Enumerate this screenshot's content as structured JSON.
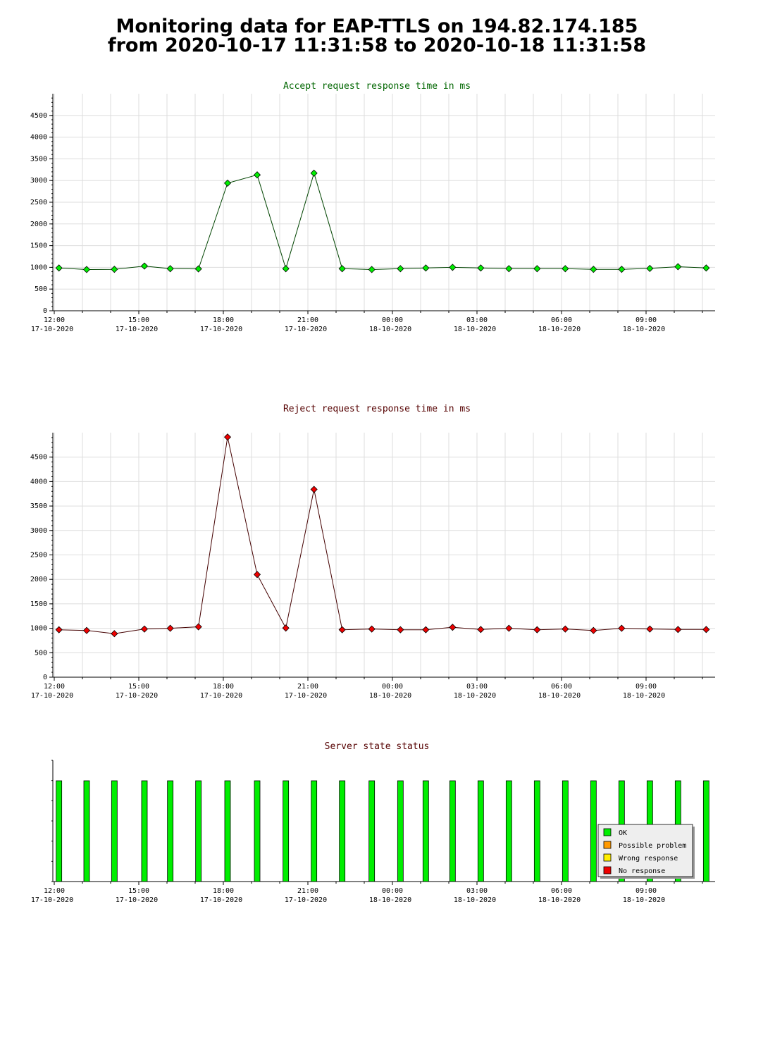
{
  "page": {
    "title_line1": "Monitoring data for EAP-TTLS on 194.82.174.185",
    "title_line2": "from 2020-10-17 11:31:58 to 2020-10-18 11:31:58"
  },
  "chart_data": [
    {
      "type": "line",
      "title": "Accept request response time in ms",
      "title_color": "#006600",
      "line_color": "#004400",
      "marker_color": "#00ee00",
      "ylim": [
        0,
        5000
      ],
      "yticks": [
        0,
        500,
        1000,
        1500,
        2000,
        2500,
        3000,
        3500,
        4000,
        4500
      ],
      "grid": true,
      "x_tick_labels": [
        {
          "time": "12:00",
          "date": "17-10-2020"
        },
        {
          "time": "15:00",
          "date": "17-10-2020"
        },
        {
          "time": "18:00",
          "date": "17-10-2020"
        },
        {
          "time": "21:00",
          "date": "17-10-2020"
        },
        {
          "time": "00:00",
          "date": "18-10-2020"
        },
        {
          "time": "03:00",
          "date": "18-10-2020"
        },
        {
          "time": "06:00",
          "date": "18-10-2020"
        },
        {
          "time": "09:00",
          "date": "18-10-2020"
        }
      ],
      "x": [
        "2020-10-17 12:10",
        "2020-10-17 13:09",
        "2020-10-17 14:08",
        "2020-10-17 15:12",
        "2020-10-17 16:07",
        "2020-10-17 17:07",
        "2020-10-17 18:09",
        "2020-10-17 19:12",
        "2020-10-17 20:13",
        "2020-10-17 21:13",
        "2020-10-17 22:13",
        "2020-10-17 23:16",
        "2020-10-18 00:17",
        "2020-10-18 01:11",
        "2020-10-18 02:08",
        "2020-10-18 03:08",
        "2020-10-18 04:08",
        "2020-10-18 05:08",
        "2020-10-18 06:08",
        "2020-10-18 07:08",
        "2020-10-18 08:08",
        "2020-10-18 09:08",
        "2020-10-18 10:08",
        "2020-10-18 11:08"
      ],
      "values": [
        985,
        950,
        955,
        1030,
        970,
        965,
        2940,
        3130,
        970,
        3170,
        970,
        950,
        970,
        985,
        1000,
        985,
        970,
        970,
        970,
        955,
        955,
        975,
        1015,
        985
      ]
    },
    {
      "type": "line",
      "title": "Reject request response time in ms",
      "title_color": "#550000",
      "line_color": "#440000",
      "marker_color": "#ee0000",
      "ylim": [
        0,
        5000
      ],
      "yticks": [
        0,
        500,
        1000,
        1500,
        2000,
        2500,
        3000,
        3500,
        4000,
        4500
      ],
      "grid": true,
      "x_tick_labels": [
        {
          "time": "12:00",
          "date": "17-10-2020"
        },
        {
          "time": "15:00",
          "date": "17-10-2020"
        },
        {
          "time": "18:00",
          "date": "17-10-2020"
        },
        {
          "time": "21:00",
          "date": "17-10-2020"
        },
        {
          "time": "00:00",
          "date": "18-10-2020"
        },
        {
          "time": "03:00",
          "date": "18-10-2020"
        },
        {
          "time": "06:00",
          "date": "18-10-2020"
        },
        {
          "time": "09:00",
          "date": "18-10-2020"
        }
      ],
      "x": [
        "2020-10-17 12:10",
        "2020-10-17 13:09",
        "2020-10-17 14:08",
        "2020-10-17 15:12",
        "2020-10-17 16:07",
        "2020-10-17 17:07",
        "2020-10-17 18:09",
        "2020-10-17 19:12",
        "2020-10-17 20:13",
        "2020-10-17 21:13",
        "2020-10-17 22:13",
        "2020-10-17 23:16",
        "2020-10-18 00:17",
        "2020-10-18 01:11",
        "2020-10-18 02:08",
        "2020-10-18 03:08",
        "2020-10-18 04:08",
        "2020-10-18 05:08",
        "2020-10-18 06:08",
        "2020-10-18 07:08",
        "2020-10-18 08:08",
        "2020-10-18 09:08",
        "2020-10-18 10:08",
        "2020-10-18 11:08"
      ],
      "values": [
        970,
        955,
        890,
        985,
        1000,
        1030,
        4910,
        2100,
        1005,
        3840,
        970,
        985,
        970,
        970,
        1020,
        975,
        1000,
        970,
        985,
        955,
        1000,
        985,
        975,
        975
      ]
    },
    {
      "type": "bar",
      "title": "Server state status",
      "title_color": "#550000",
      "grid": false,
      "x_tick_labels": [
        {
          "time": "12:00",
          "date": "17-10-2020"
        },
        {
          "time": "15:00",
          "date": "17-10-2020"
        },
        {
          "time": "18:00",
          "date": "17-10-2020"
        },
        {
          "time": "21:00",
          "date": "17-10-2020"
        },
        {
          "time": "00:00",
          "date": "18-10-2020"
        },
        {
          "time": "03:00",
          "date": "18-10-2020"
        },
        {
          "time": "06:00",
          "date": "18-10-2020"
        },
        {
          "time": "09:00",
          "date": "18-10-2020"
        }
      ],
      "x": [
        "2020-10-17 12:10",
        "2020-10-17 13:09",
        "2020-10-17 14:08",
        "2020-10-17 15:12",
        "2020-10-17 16:07",
        "2020-10-17 17:07",
        "2020-10-17 18:09",
        "2020-10-17 19:12",
        "2020-10-17 20:13",
        "2020-10-17 21:13",
        "2020-10-17 22:13",
        "2020-10-17 23:16",
        "2020-10-18 00:17",
        "2020-10-18 01:11",
        "2020-10-18 02:08",
        "2020-10-18 03:08",
        "2020-10-18 04:08",
        "2020-10-18 05:08",
        "2020-10-18 06:08",
        "2020-10-18 07:08",
        "2020-10-18 08:08",
        "2020-10-18 09:08",
        "2020-10-18 10:08",
        "2020-10-18 11:08"
      ],
      "status": [
        "OK",
        "OK",
        "OK",
        "OK",
        "OK",
        "OK",
        "OK",
        "OK",
        "OK",
        "OK",
        "OK",
        "OK",
        "OK",
        "OK",
        "OK",
        "OK",
        "OK",
        "OK",
        "OK",
        "OK",
        "OK",
        "OK",
        "OK",
        "OK"
      ],
      "legend_placement": "bottom-right",
      "legend": [
        {
          "label": "OK",
          "color": "#00ee00"
        },
        {
          "label": "Possible problem",
          "color": "#ff9900"
        },
        {
          "label": "Wrong response",
          "color": "#ffee00"
        },
        {
          "label": "No response",
          "color": "#ee0000"
        }
      ]
    }
  ]
}
